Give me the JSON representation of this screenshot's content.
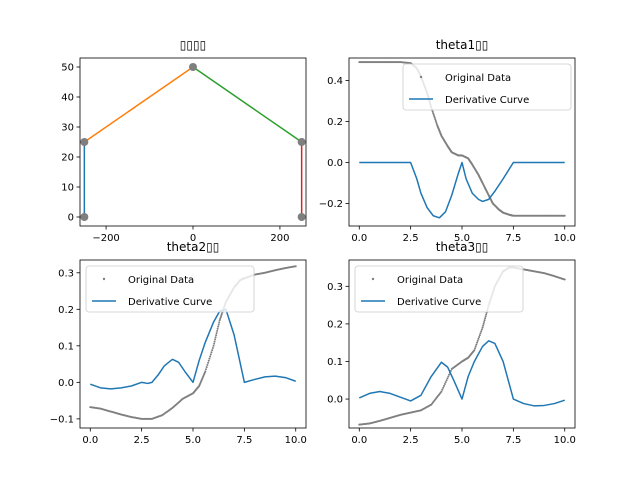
{
  "chart_data": [
    {
      "type": "line",
      "title": "▯▯▯▯",
      "xlabel": "",
      "ylabel": "",
      "xlim": [
        -260,
        260
      ],
      "ylim": [
        -3,
        53
      ],
      "xticks": [
        -200,
        0,
        200
      ],
      "xtick_labels": [
        "−200",
        "0",
        "200"
      ],
      "yticks": [
        0,
        10,
        20,
        30,
        40,
        50
      ],
      "ytick_labels": [
        "0",
        "10",
        "20",
        "30",
        "40",
        "50"
      ],
      "legend": null,
      "segments": [
        {
          "color": "#1f77b4",
          "x": [
            -250,
            -250
          ],
          "y": [
            0,
            25
          ]
        },
        {
          "color": "#ff7f0e",
          "x": [
            -250,
            0
          ],
          "y": [
            25,
            50
          ]
        },
        {
          "color": "#2ca02c",
          "x": [
            0,
            250
          ],
          "y": [
            50,
            25
          ]
        },
        {
          "color": "#d62728",
          "x": [
            250,
            250
          ],
          "y": [
            25,
            0
          ]
        }
      ],
      "joints": {
        "color": "#7f7f7f",
        "x": [
          -250,
          -250,
          0,
          250,
          250
        ],
        "y": [
          0,
          25,
          50,
          25,
          0
        ]
      }
    },
    {
      "type": "line",
      "title": "theta1▯▯",
      "xlabel": "",
      "ylabel": "",
      "xlim": [
        -0.5,
        10.5
      ],
      "ylim": [
        -0.31,
        0.51
      ],
      "xticks": [
        0,
        2.5,
        5,
        7.5,
        10
      ],
      "xtick_labels": [
        "0.0",
        "2.5",
        "5.0",
        "7.5",
        "10.0"
      ],
      "yticks": [
        -0.2,
        0,
        0.2,
        0.4
      ],
      "ytick_labels": [
        "−0.2",
        "0.0",
        "0.2",
        "0.4"
      ],
      "legend": "top-right",
      "series": [
        {
          "name": "Original Data",
          "kind": "scatter",
          "color": "#808080",
          "x": [
            0,
            0.5,
            1,
            1.5,
            2,
            2.5,
            2.8,
            3,
            3.3,
            3.5,
            3.8,
            4,
            4.3,
            4.5,
            4.8,
            5,
            5.3,
            5.5,
            5.8,
            6,
            6.3,
            6.5,
            6.8,
            7,
            7.3,
            7.5,
            8,
            8.5,
            9,
            9.5,
            10
          ],
          "y": [
            0.49,
            0.49,
            0.49,
            0.49,
            0.49,
            0.485,
            0.46,
            0.42,
            0.34,
            0.27,
            0.18,
            0.13,
            0.08,
            0.05,
            0.035,
            0.035,
            0.02,
            -0.01,
            -0.06,
            -0.1,
            -0.16,
            -0.2,
            -0.23,
            -0.245,
            -0.255,
            -0.26,
            -0.26,
            -0.26,
            -0.26,
            -0.26,
            -0.26
          ]
        },
        {
          "name": "Derivative Curve",
          "kind": "line",
          "color": "#1f77b4",
          "x": [
            0,
            1,
            2,
            2.5,
            2.8,
            3,
            3.3,
            3.6,
            3.9,
            4.2,
            4.5,
            4.8,
            5,
            5.2,
            5.5,
            5.8,
            6,
            6.3,
            6.6,
            7,
            7.5,
            8,
            9,
            10
          ],
          "y": [
            0,
            0,
            0,
            0,
            -0.08,
            -0.15,
            -0.22,
            -0.26,
            -0.27,
            -0.24,
            -0.16,
            -0.06,
            0,
            -0.08,
            -0.15,
            -0.18,
            -0.19,
            -0.18,
            -0.14,
            -0.08,
            0,
            0,
            0,
            0
          ]
        }
      ]
    },
    {
      "type": "line",
      "title": "theta2▯▯",
      "xlabel": "",
      "ylabel": "",
      "xlim": [
        -0.5,
        10.5
      ],
      "ylim": [
        -0.125,
        0.335
      ],
      "xticks": [
        0,
        2.5,
        5,
        7.5,
        10
      ],
      "xtick_labels": [
        "0.0",
        "2.5",
        "5.0",
        "7.5",
        "10.0"
      ],
      "yticks": [
        -0.1,
        0,
        0.1,
        0.2,
        0.3
      ],
      "ytick_labels": [
        "−0.1",
        "0.0",
        "0.1",
        "0.2",
        "0.3"
      ],
      "legend": "top-left",
      "series": [
        {
          "name": "Original Data",
          "kind": "scatter",
          "color": "#808080",
          "x": [
            0,
            0.5,
            1,
            1.5,
            2,
            2.5,
            3,
            3.5,
            4,
            4.5,
            5,
            5.3,
            5.6,
            6,
            6.3,
            6.6,
            7,
            7.3,
            7.5,
            8,
            8.5,
            9,
            9.5,
            10
          ],
          "y": [
            -0.068,
            -0.072,
            -0.08,
            -0.088,
            -0.095,
            -0.1,
            -0.1,
            -0.09,
            -0.07,
            -0.045,
            -0.03,
            -0.01,
            0.03,
            0.1,
            0.17,
            0.22,
            0.26,
            0.28,
            0.285,
            0.295,
            0.3,
            0.307,
            0.313,
            0.318
          ]
        },
        {
          "name": "Derivative Curve",
          "kind": "line",
          "color": "#1f77b4",
          "x": [
            0,
            0.5,
            1,
            1.5,
            2,
            2.5,
            2.8,
            3,
            3.3,
            3.6,
            4,
            4.3,
            4.6,
            5,
            5.3,
            5.6,
            6,
            6.3,
            6.6,
            7,
            7.5,
            8,
            8.5,
            9,
            9.5,
            10
          ],
          "y": [
            -0.005,
            -0.015,
            -0.018,
            -0.015,
            -0.01,
            0,
            -0.003,
            0,
            0.02,
            0.045,
            0.063,
            0.055,
            0.03,
            0,
            0.06,
            0.11,
            0.165,
            0.195,
            0.2,
            0.13,
            0,
            0.008,
            0.015,
            0.017,
            0.013,
            0.003
          ]
        }
      ]
    },
    {
      "type": "line",
      "title": "theta3▯▯",
      "xlabel": "",
      "ylabel": "",
      "xlim": [
        -0.5,
        10.5
      ],
      "ylim": [
        -0.077,
        0.37
      ],
      "xticks": [
        0,
        2.5,
        5,
        7.5,
        10
      ],
      "xtick_labels": [
        "0.0",
        "2.5",
        "5.0",
        "7.5",
        "10.0"
      ],
      "yticks": [
        0,
        0.1,
        0.2,
        0.3
      ],
      "ytick_labels": [
        "0.0",
        "0.1",
        "0.2",
        "0.3"
      ],
      "legend": "top-left",
      "series": [
        {
          "name": "Original Data",
          "kind": "scatter",
          "color": "#808080",
          "x": [
            0,
            0.5,
            1,
            1.5,
            2,
            2.5,
            3,
            3.5,
            4,
            4.5,
            5,
            5.3,
            5.6,
            6,
            6.3,
            6.6,
            7,
            7.3,
            7.5,
            8,
            8.5,
            9,
            9.5,
            10
          ],
          "y": [
            -0.068,
            -0.065,
            -0.058,
            -0.05,
            -0.042,
            -0.036,
            -0.03,
            -0.015,
            0.02,
            0.08,
            0.1,
            0.11,
            0.13,
            0.19,
            0.25,
            0.3,
            0.34,
            0.35,
            0.35,
            0.345,
            0.34,
            0.335,
            0.327,
            0.318
          ]
        },
        {
          "name": "Derivative Curve",
          "kind": "line",
          "color": "#1f77b4",
          "x": [
            0,
            0.5,
            1,
            1.5,
            2,
            2.5,
            3,
            3.5,
            4,
            4.3,
            4.6,
            5,
            5.3,
            5.6,
            6,
            6.3,
            6.6,
            7,
            7.5,
            8,
            8.5,
            9,
            9.5,
            10
          ],
          "y": [
            0.003,
            0.015,
            0.02,
            0.015,
            0.005,
            -0.005,
            0.01,
            0.06,
            0.098,
            0.085,
            0.05,
            0,
            0.06,
            0.1,
            0.14,
            0.155,
            0.148,
            0.1,
            0,
            -0.012,
            -0.018,
            -0.017,
            -0.012,
            -0.003
          ]
        }
      ]
    }
  ]
}
